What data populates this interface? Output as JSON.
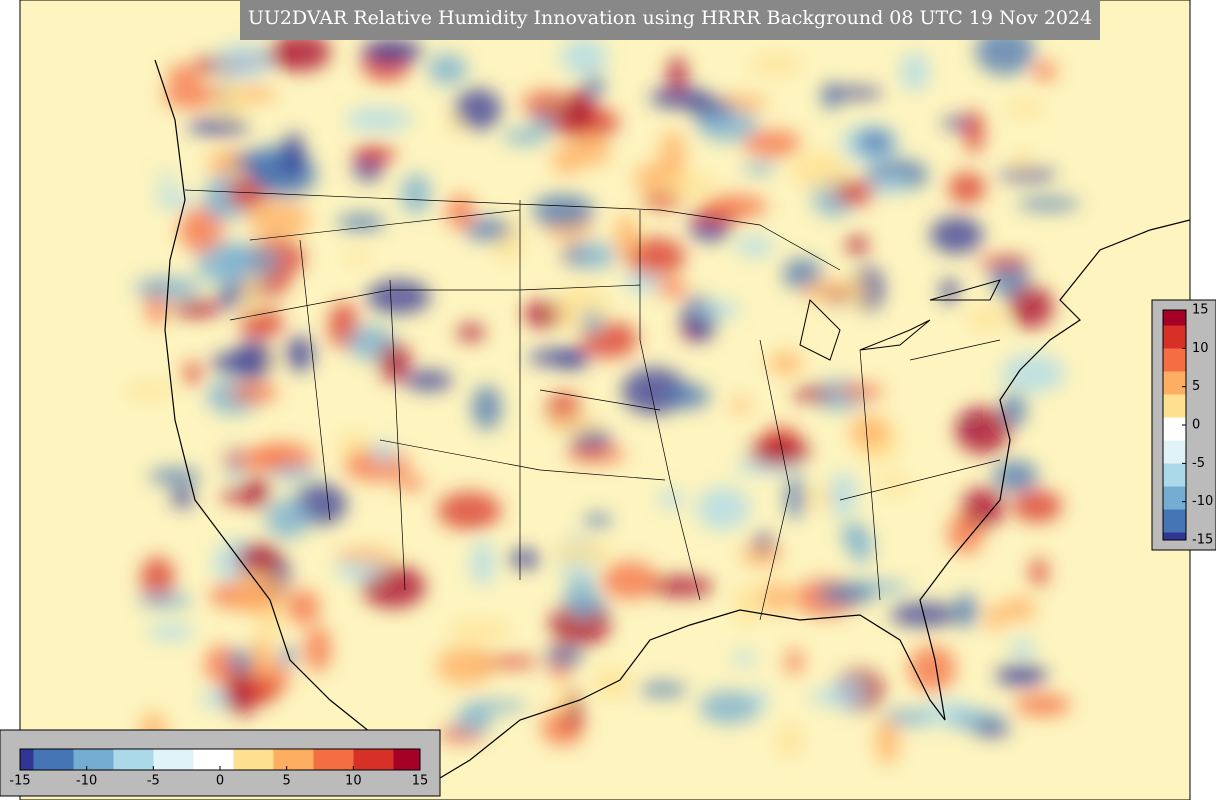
{
  "title": "UU2DVAR Relative Humidity Innovation using HRRR Background 08 UTC 19 Nov 2024",
  "colorbar": {
    "lim": [
      -15,
      15
    ],
    "ticks": [
      -15,
      -10,
      -5,
      0,
      5,
      10,
      15
    ]
  }
}
